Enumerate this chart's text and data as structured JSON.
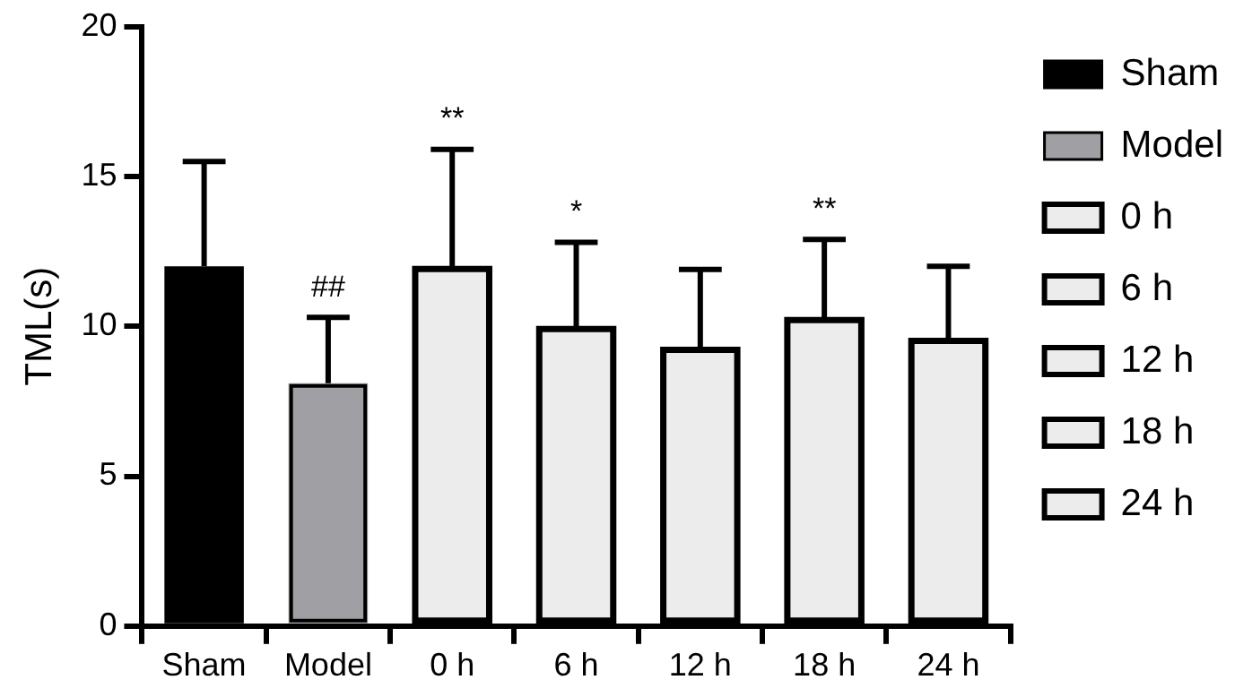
{
  "chart_data": {
    "type": "bar",
    "ylabel": "TML(s)",
    "categories": [
      "Sham",
      "Model",
      "0 h",
      "6 h",
      "12 h",
      "18 h",
      "24 h"
    ],
    "series": [
      {
        "name": "Sham",
        "color": "#000000",
        "values": [
          12.0,
          null,
          null,
          null,
          null,
          null,
          null
        ],
        "errors": [
          3.5,
          null,
          null,
          null,
          null,
          null,
          null
        ]
      },
      {
        "name": "Model",
        "color": "#a0a0a4",
        "values": [
          null,
          8.1,
          null,
          null,
          null,
          null,
          null
        ],
        "errors": [
          null,
          2.2,
          null,
          null,
          null,
          null,
          null
        ]
      },
      {
        "name": "0 h",
        "color": "#ececec",
        "values": [
          null,
          null,
          12.0,
          null,
          null,
          null,
          null
        ],
        "errors": [
          null,
          null,
          3.9,
          null,
          null,
          null,
          null
        ]
      },
      {
        "name": "6 h",
        "color": "#ececec",
        "values": [
          null,
          null,
          null,
          10.0,
          null,
          null,
          null
        ],
        "errors": [
          null,
          null,
          null,
          2.8,
          null,
          null,
          null
        ]
      },
      {
        "name": "12 h",
        "color": "#ececec",
        "values": [
          null,
          null,
          null,
          null,
          9.3,
          null,
          null
        ],
        "errors": [
          null,
          null,
          null,
          null,
          2.6,
          null,
          null
        ]
      },
      {
        "name": "18 h",
        "color": "#ececec",
        "values": [
          null,
          null,
          null,
          null,
          null,
          10.3,
          null
        ],
        "errors": [
          null,
          null,
          null,
          null,
          null,
          2.6,
          null
        ]
      },
      {
        "name": "24 h",
        "color": "#ececec",
        "values": [
          null,
          null,
          null,
          null,
          null,
          null,
          9.6
        ],
        "errors": [
          null,
          null,
          null,
          null,
          null,
          null,
          2.4
        ]
      }
    ],
    "ylim": [
      0,
      20
    ],
    "yticks": [
      0,
      5,
      10,
      15,
      20
    ],
    "grid": false,
    "legend": "right",
    "annotations": [
      {
        "text": "##",
        "x": "Model",
        "y": 10.3
      },
      {
        "text": "**",
        "x": "0 h",
        "y": 15.9
      },
      {
        "text": "*",
        "x": "6 h",
        "y": 12.8
      },
      {
        "text": "**",
        "x": "18 h",
        "y": 12.9
      }
    ]
  }
}
